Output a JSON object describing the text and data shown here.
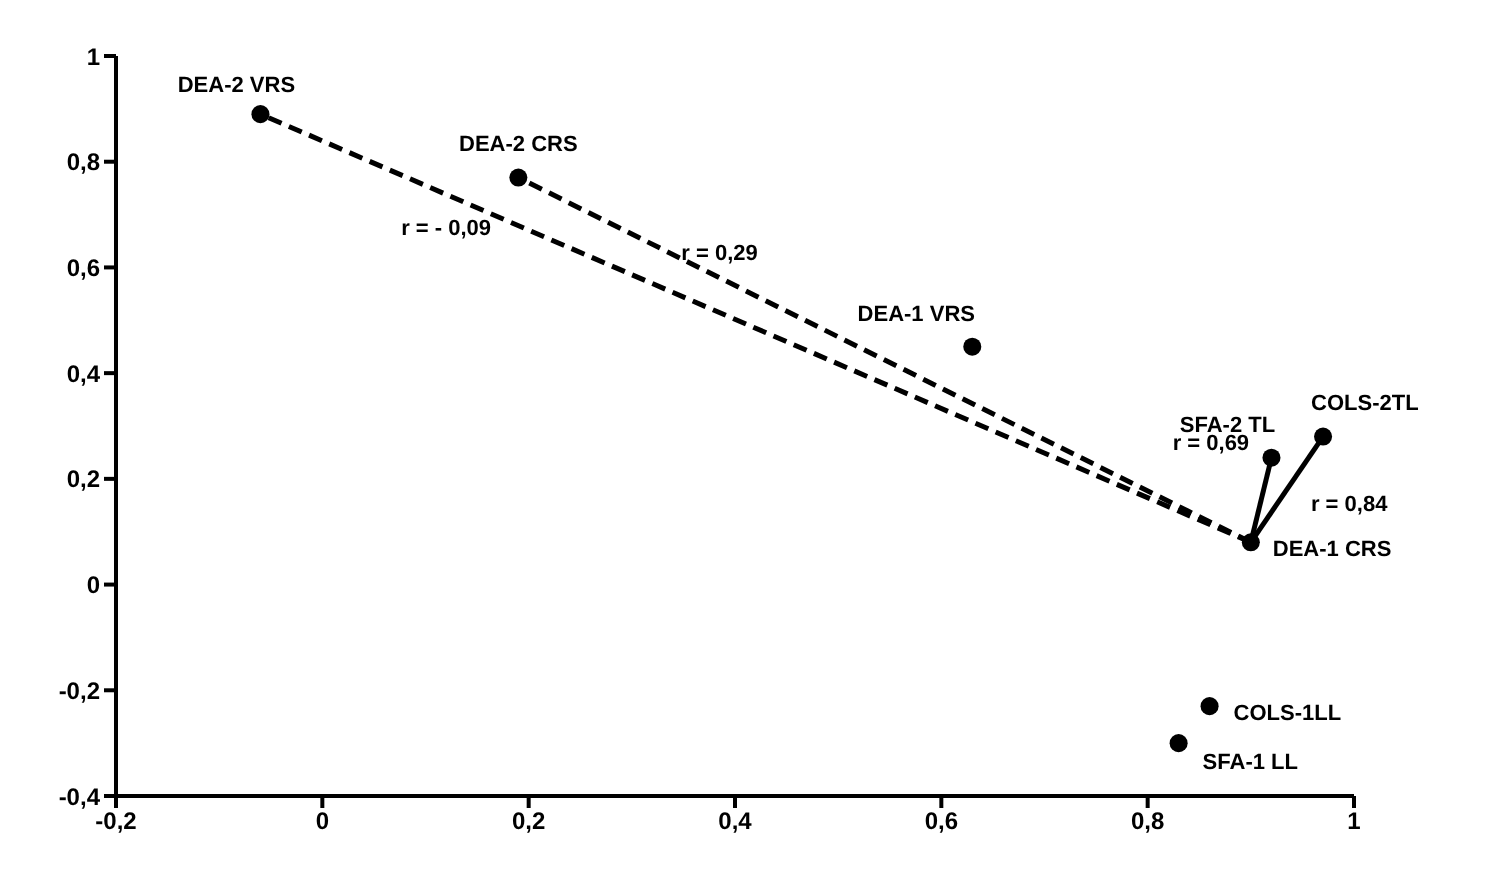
{
  "chart_data": {
    "type": "scatter",
    "xlim": [
      -0.2,
      1
    ],
    "xticks": [
      {
        "value": -0.2,
        "label": "-0,2"
      },
      0,
      {
        "value": 0.2,
        "label": "0,2"
      },
      {
        "value": 0.4,
        "label": "0,4"
      },
      {
        "value": 0.6,
        "label": "0,6"
      },
      {
        "value": 0.8,
        "label": "0,8"
      },
      1
    ],
    "ylim": [
      -0.4,
      1
    ],
    "yticks": [
      {
        "value": -0.4,
        "label": "-0,4"
      },
      {
        "value": -0.2,
        "label": "-0,2"
      },
      0,
      {
        "value": 0.2,
        "label": "0,2"
      },
      {
        "value": 0.4,
        "label": "0,4"
      },
      {
        "value": 0.6,
        "label": "0,6"
      },
      {
        "value": 0.8,
        "label": "0,8"
      },
      1
    ],
    "grid": false,
    "legend": false,
    "series": [
      {
        "color": "#000000",
        "marker": "circle",
        "x": [
          -0.06,
          0.19,
          0.63,
          0.92,
          0.97,
          0.9,
          0.86,
          0.83
        ],
        "values": [
          0.89,
          0.77,
          0.45,
          0.24,
          0.28,
          0.08,
          -0.23,
          -0.3
        ]
      },
      {
        "type": "line",
        "color": "#000000",
        "line_style": "dashed",
        "marker": "none",
        "x": [
          0.9,
          -0.06
        ],
        "values": [
          0.08,
          0.89
        ]
      },
      {
        "type": "line",
        "color": "#000000",
        "line_style": "dashed",
        "marker": "none",
        "x": [
          0.9,
          0.19
        ],
        "values": [
          0.08,
          0.77
        ]
      },
      {
        "type": "line",
        "color": "#000000",
        "line_style": "solid",
        "marker": "none",
        "x": [
          0.9,
          0.92
        ],
        "values": [
          0.08,
          0.24
        ]
      },
      {
        "type": "line",
        "color": "#000000",
        "line_style": "solid",
        "marker": "none",
        "x": [
          0.9,
          0.97
        ],
        "values": [
          0.08,
          0.28
        ]
      }
    ],
    "annotations": [
      {
        "text": "DEA-2 VRS",
        "x": -0.06,
        "y": 0.89
      },
      {
        "text": "DEA-2 CRS",
        "x": 0.19,
        "y": 0.77
      },
      {
        "text": "DEA-1 VRS",
        "x": 0.63,
        "y": 0.45
      },
      {
        "text": "SFA-2 TL",
        "x": 0.92,
        "y": 0.24
      },
      {
        "text": "COLS-2TL",
        "x": 0.97,
        "y": 0.28
      },
      {
        "text": "DEA-1 CRS",
        "x": 0.9,
        "y": 0.08
      },
      {
        "text": "COLS-1LL",
        "x": 0.86,
        "y": -0.23
      },
      {
        "text": "SFA-1 LL",
        "x": 0.83,
        "y": -0.3
      },
      {
        "text": "r = - 0,09",
        "x": 0.12,
        "y": 0.74
      },
      {
        "text": "r = 0,29",
        "x": 0.385,
        "y": 0.58
      },
      {
        "text": "r = 0,69",
        "x": 0.91,
        "y": 0.16
      },
      {
        "text": "r = 0,84",
        "x": 0.935,
        "y": 0.18
      }
    ]
  }
}
